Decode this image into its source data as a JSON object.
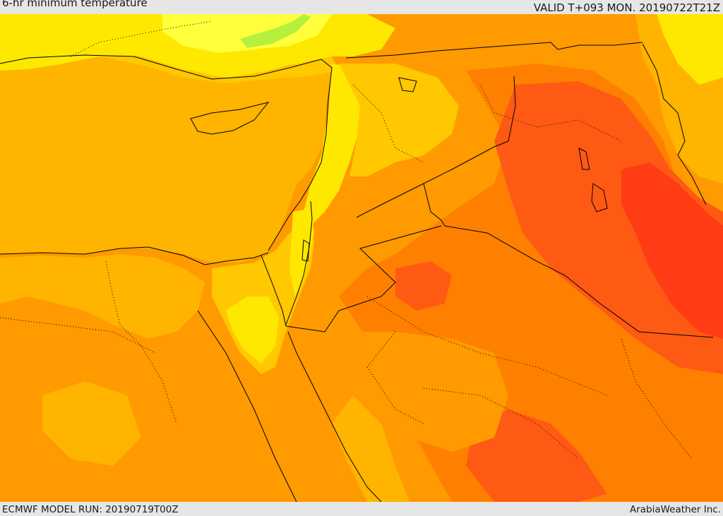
{
  "header": {
    "title": "6-hr minimum temperature",
    "valid_text": "VALID T+093 MON. 20190722T21Z"
  },
  "footer": {
    "model_run": "ECMWF MODEL RUN: 20190719T00Z",
    "credit": "ArabiaWeather Inc."
  },
  "map": {
    "variable": "6-hr minimum temperature",
    "colors": {
      "green": "#b4f03c",
      "light_yellow": "#ffff3c",
      "yellow": "#ffe800",
      "gold": "#ffc800",
      "amber": "#ffb400",
      "orange": "#ff9a00",
      "dark_orange": "#ff8000",
      "red_orange": "#ff5a14",
      "red": "#ff3c14",
      "border_line": "#000000"
    }
  }
}
